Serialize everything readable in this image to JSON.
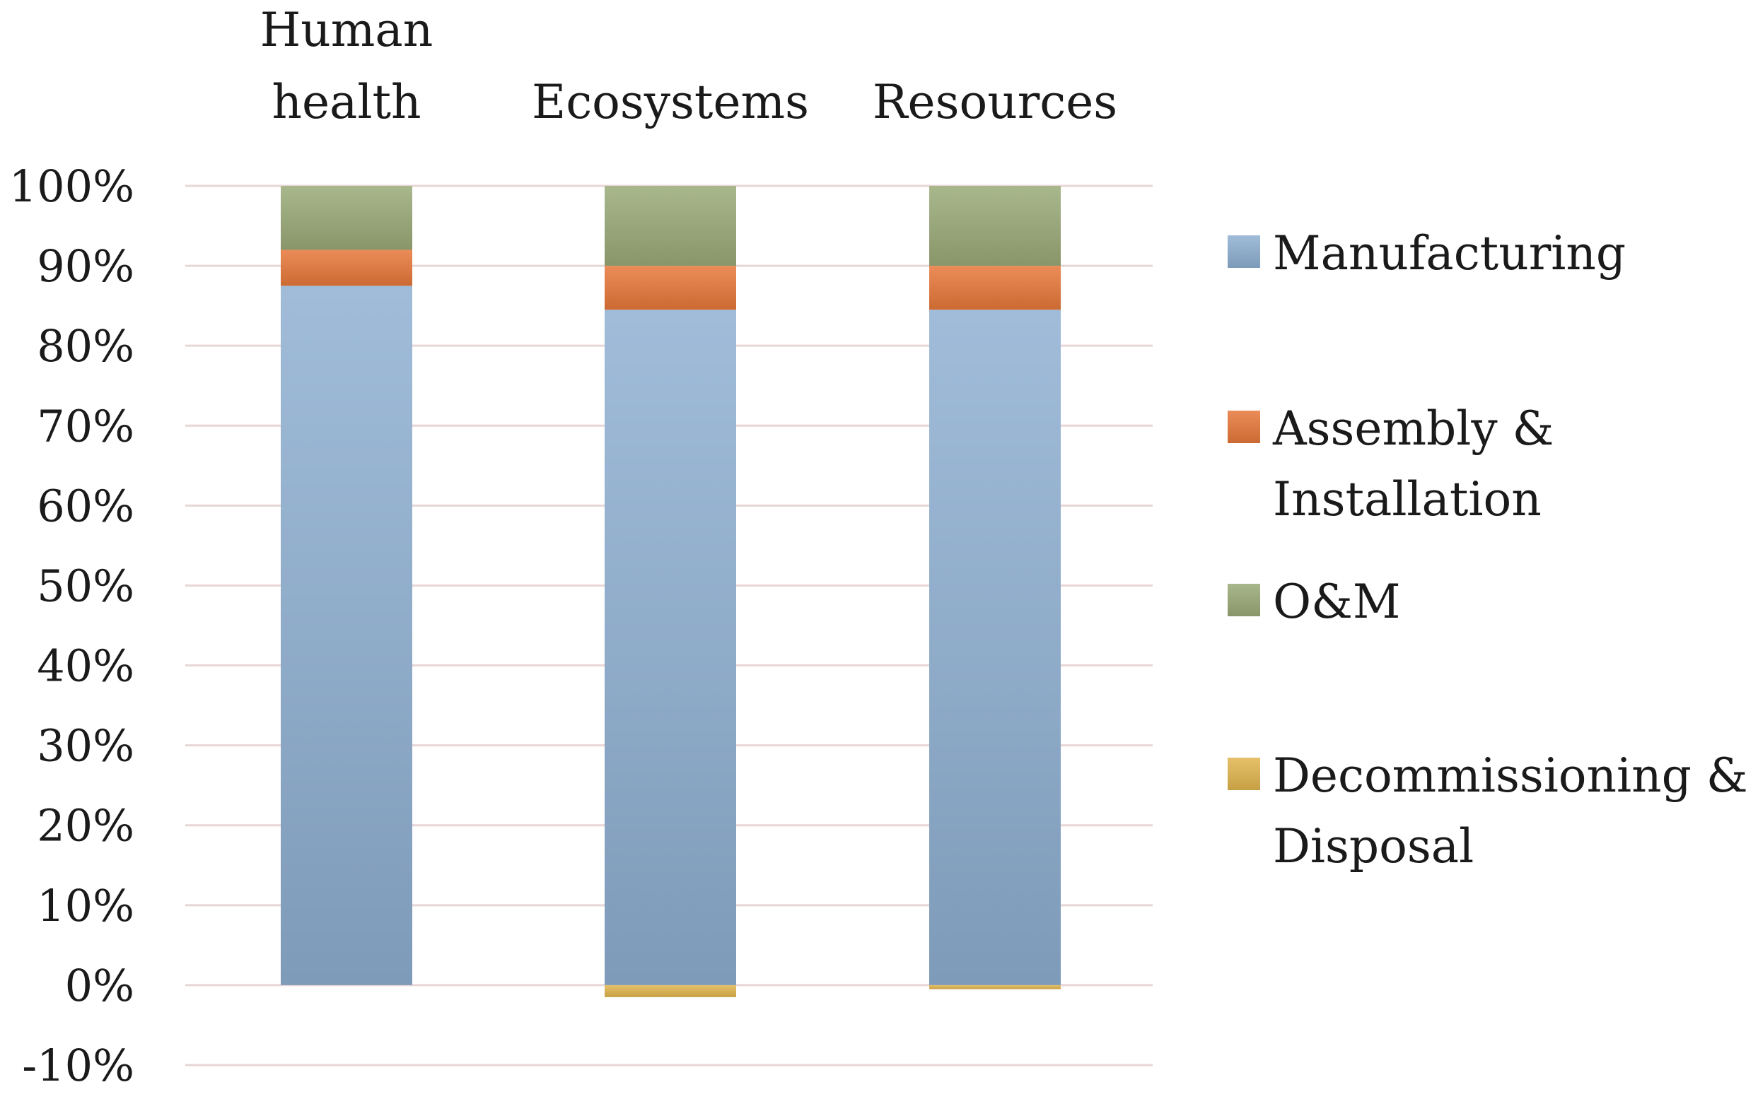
{
  "chart_data": {
    "type": "bar",
    "stacked": true,
    "categories": [
      [
        "Human",
        "health"
      ],
      [
        "Ecosystems"
      ],
      [
        "Resources"
      ]
    ],
    "series": [
      {
        "name": "Manufacturing",
        "color": "#8fb0d2",
        "values": [
          87.5,
          84.5,
          84.5
        ]
      },
      {
        "name": "Assembly & Installation",
        "color": "#e8783a",
        "values": [
          4.5,
          5.5,
          5.5
        ]
      },
      {
        "name": "O&M",
        "color": "#9aab78",
        "values": [
          8.0,
          10.0,
          10.0
        ]
      },
      {
        "name": "Decommissioning & Disposal",
        "color": "#e2b64e",
        "values": [
          0.0,
          -1.5,
          -0.5
        ]
      }
    ],
    "legend_lines": [
      [
        "Manufacturing"
      ],
      [
        "Assembly &",
        "Installation"
      ],
      [
        "O&M"
      ],
      [
        "Decommissioning &",
        "Disposal"
      ]
    ],
    "yticks": [
      "100%",
      "90%",
      "80%",
      "70%",
      "60%",
      "50%",
      "40%",
      "30%",
      "20%",
      "10%",
      "0%",
      "-10%"
    ],
    "ylim": [
      -10,
      100
    ],
    "grid": true,
    "legend_position": "right",
    "category_axis_position": "top"
  }
}
